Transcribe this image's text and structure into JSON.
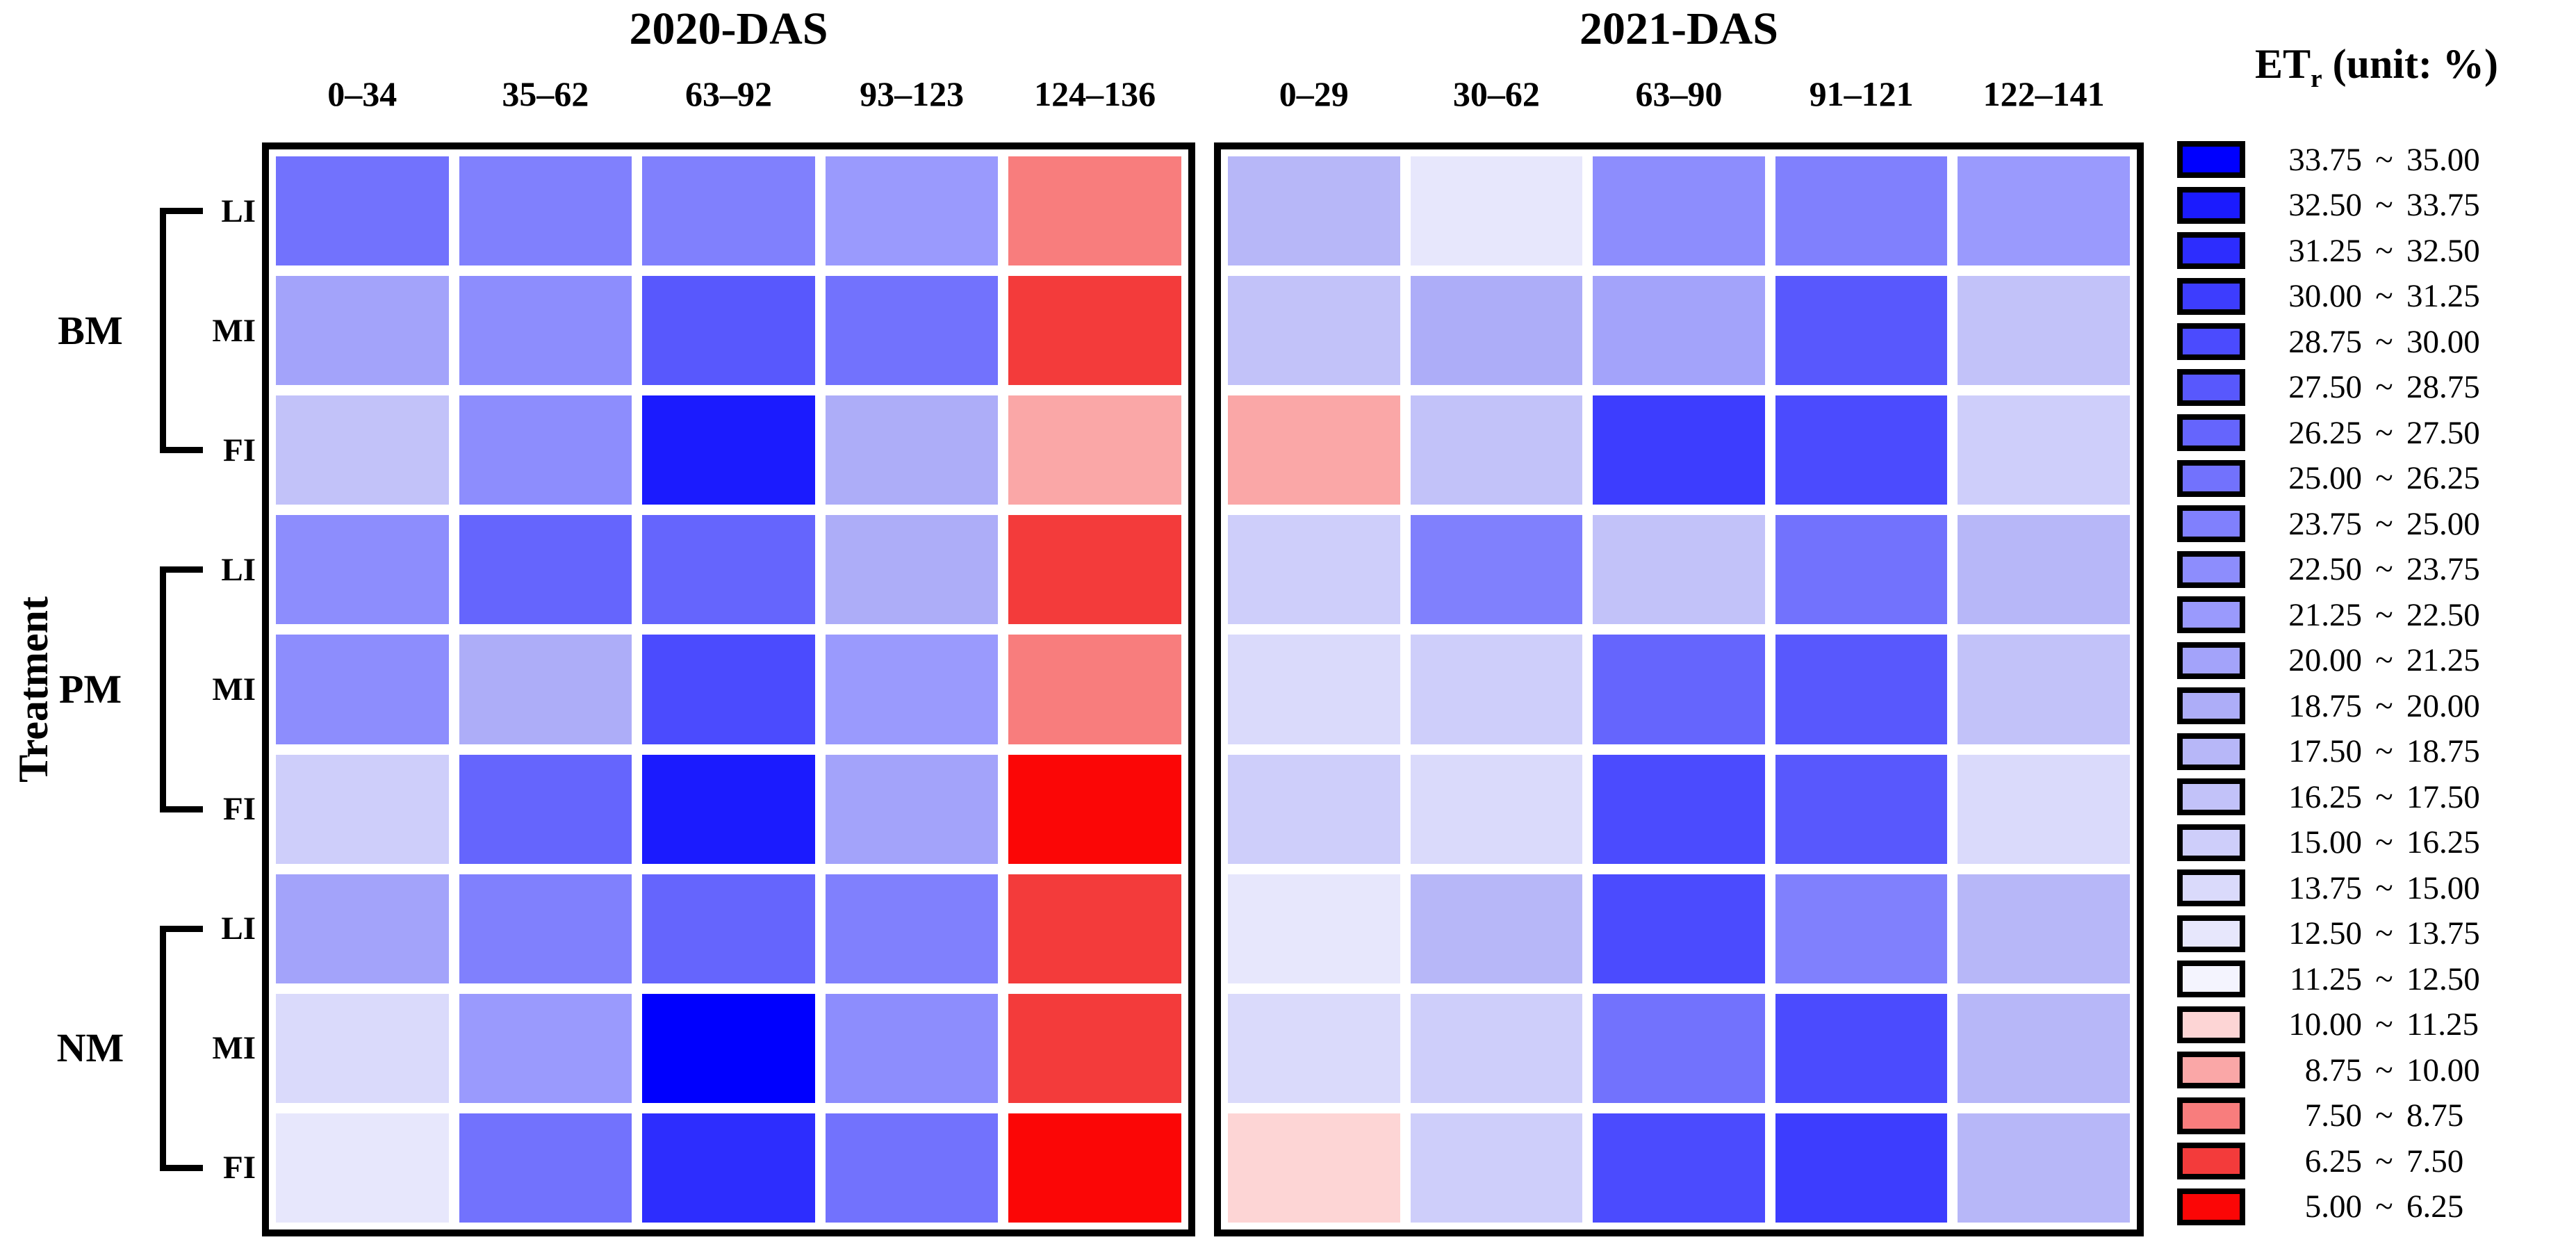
{
  "figure": {
    "ylabel": "Treatment",
    "background": "#FFFFFF",
    "frame_color": "#000000"
  },
  "legend": {
    "title_main": "ET",
    "title_sub": "r",
    "title_rest": " (unit: %)",
    "bins": [
      {
        "lo": "33.75",
        "hi": "35.00",
        "color": "#0000FE"
      },
      {
        "lo": "32.50",
        "hi": "33.75",
        "color": "#1B1BFE"
      },
      {
        "lo": "31.25",
        "hi": "32.50",
        "color": "#2D2DFE"
      },
      {
        "lo": "30.00",
        "hi": "31.25",
        "color": "#3D3DFE"
      },
      {
        "lo": "28.75",
        "hi": "30.00",
        "color": "#4B4BFE"
      },
      {
        "lo": "27.50",
        "hi": "28.75",
        "color": "#5858FD"
      },
      {
        "lo": "26.25",
        "hi": "27.50",
        "color": "#6565FD"
      },
      {
        "lo": "25.00",
        "hi": "26.25",
        "color": "#7272FD"
      },
      {
        "lo": "23.75",
        "hi": "25.00",
        "color": "#8080FD"
      },
      {
        "lo": "22.50",
        "hi": "23.75",
        "color": "#8D8DFD"
      },
      {
        "lo": "21.25",
        "hi": "22.50",
        "color": "#9A9AFD"
      },
      {
        "lo": "20.00",
        "hi": "21.25",
        "color": "#A3A3FA"
      },
      {
        "lo": "18.75",
        "hi": "20.00",
        "color": "#ADADF8"
      },
      {
        "lo": "17.50",
        "hi": "18.75",
        "color": "#B7B7F8"
      },
      {
        "lo": "16.25",
        "hi": "17.50",
        "color": "#C2C2F9"
      },
      {
        "lo": "15.00",
        "hi": "16.25",
        "color": "#CECEFA"
      },
      {
        "lo": "13.75",
        "hi": "15.00",
        "color": "#DADAFB"
      },
      {
        "lo": "12.50",
        "hi": "13.75",
        "color": "#E7E7FC"
      },
      {
        "lo": "11.25",
        "hi": "12.50",
        "color": "#F4F4FE"
      },
      {
        "lo": "10.00",
        "hi": "11.25",
        "color": "#FDD5D5"
      },
      {
        "lo": "8.75",
        "hi": "10.00",
        "color": "#FAA7A7"
      },
      {
        "lo": "7.50",
        "hi": "8.75",
        "color": "#F87D7D"
      },
      {
        "lo": "6.25",
        "hi": "7.50",
        "color": "#F33B3B"
      },
      {
        "lo": "5.00",
        "hi": "6.25",
        "color": "#FB0606"
      }
    ]
  },
  "chart_data": [
    {
      "type": "heatmap",
      "title": "2020-DAS",
      "unit": "%",
      "ylabel": "Treatment",
      "x_categories": [
        "0–34",
        "35–62",
        "63–92",
        "93–123",
        "124–136"
      ],
      "row_groups": [
        {
          "label": "BM",
          "rows": [
            "LI",
            "MI",
            "FI"
          ]
        },
        {
          "label": "PM",
          "rows": [
            "LI",
            "MI",
            "FI"
          ]
        },
        {
          "label": "NM",
          "rows": [
            "LI",
            "MI",
            "FI"
          ]
        }
      ],
      "bins": [
        [
          "25.00~26.25",
          "23.75~25.00",
          "23.75~25.00",
          "21.25~22.50",
          "7.50~8.75"
        ],
        [
          "20.00~21.25",
          "22.50~23.75",
          "27.50~28.75",
          "25.00~26.25",
          "6.25~7.50"
        ],
        [
          "16.25~17.50",
          "22.50~23.75",
          "32.50~33.75",
          "18.75~20.00",
          "8.75~10.00"
        ],
        [
          "22.50~23.75",
          "26.25~27.50",
          "26.25~27.50",
          "18.75~20.00",
          "6.25~7.50"
        ],
        [
          "22.50~23.75",
          "18.75~20.00",
          "28.75~30.00",
          "21.25~22.50",
          "7.50~8.75"
        ],
        [
          "15.00~16.25",
          "26.25~27.50",
          "32.50~33.75",
          "20.00~21.25",
          "5.00~6.25"
        ],
        [
          "20.00~21.25",
          "23.75~25.00",
          "26.25~27.50",
          "23.75~25.00",
          "6.25~7.50"
        ],
        [
          "13.75~15.00",
          "21.25~22.50",
          "33.75~35.00",
          "22.50~23.75",
          "6.25~7.50"
        ],
        [
          "12.50~13.75",
          "25.00~26.25",
          "31.25~32.50",
          "25.00~26.25",
          "5.00~6.25"
        ]
      ],
      "values": [
        [
          25.6,
          24.4,
          24.4,
          21.9,
          8.1
        ],
        [
          20.6,
          23.1,
          28.1,
          25.6,
          6.9
        ],
        [
          16.9,
          23.1,
          33.1,
          19.4,
          9.4
        ],
        [
          23.1,
          26.9,
          26.9,
          19.4,
          6.9
        ],
        [
          23.1,
          19.4,
          29.4,
          21.9,
          8.1
        ],
        [
          15.6,
          26.9,
          33.1,
          20.6,
          5.6
        ],
        [
          20.6,
          24.4,
          26.9,
          24.4,
          6.9
        ],
        [
          14.4,
          21.9,
          34.4,
          23.1,
          6.9
        ],
        [
          13.1,
          25.6,
          31.9,
          25.6,
          5.6
        ]
      ]
    },
    {
      "type": "heatmap",
      "title": "2021-DAS",
      "unit": "%",
      "ylabel": "Treatment",
      "x_categories": [
        "0–29",
        "30–62",
        "63–90",
        "91–121",
        "122–141"
      ],
      "row_groups": [
        {
          "label": "BM",
          "rows": [
            "LI",
            "MI",
            "FI"
          ]
        },
        {
          "label": "PM",
          "rows": [
            "LI",
            "MI",
            "FI"
          ]
        },
        {
          "label": "NM",
          "rows": [
            "LI",
            "MI",
            "FI"
          ]
        }
      ],
      "bins": [
        [
          "17.50~18.75",
          "12.50~13.75",
          "22.50~23.75",
          "23.75~25.00",
          "21.25~22.50"
        ],
        [
          "16.25~17.50",
          "18.75~20.00",
          "20.00~21.25",
          "27.50~28.75",
          "16.25~17.50"
        ],
        [
          "8.75~10.00",
          "16.25~17.50",
          "30.00~31.25",
          "28.75~30.00",
          "15.00~16.25"
        ],
        [
          "15.00~16.25",
          "23.75~25.00",
          "16.25~17.50",
          "25.00~26.25",
          "17.50~18.75"
        ],
        [
          "13.75~15.00",
          "15.00~16.25",
          "26.25~27.50",
          "27.50~28.75",
          "16.25~17.50"
        ],
        [
          "15.00~16.25",
          "13.75~15.00",
          "28.75~30.00",
          "27.50~28.75",
          "13.75~15.00"
        ],
        [
          "12.50~13.75",
          "17.50~18.75",
          "28.75~30.00",
          "23.75~25.00",
          "17.50~18.75"
        ],
        [
          "13.75~15.00",
          "15.00~16.25",
          "25.00~26.25",
          "28.75~30.00",
          "17.50~18.75"
        ],
        [
          "10.00~11.25",
          "15.00~16.25",
          "28.75~30.00",
          "30.00~31.25",
          "17.50~18.75"
        ]
      ],
      "values": [
        [
          18.1,
          13.1,
          23.1,
          24.4,
          21.9
        ],
        [
          16.9,
          19.4,
          20.6,
          28.1,
          16.9
        ],
        [
          9.4,
          16.9,
          30.6,
          29.4,
          15.6
        ],
        [
          15.6,
          24.4,
          16.9,
          25.6,
          18.1
        ],
        [
          14.4,
          15.6,
          26.9,
          28.1,
          16.9
        ],
        [
          15.6,
          14.4,
          29.4,
          28.1,
          14.4
        ],
        [
          13.1,
          18.1,
          29.4,
          24.4,
          18.1
        ],
        [
          14.4,
          15.6,
          25.6,
          29.4,
          18.1
        ],
        [
          10.6,
          15.6,
          29.4,
          30.6,
          18.1
        ]
      ]
    }
  ]
}
